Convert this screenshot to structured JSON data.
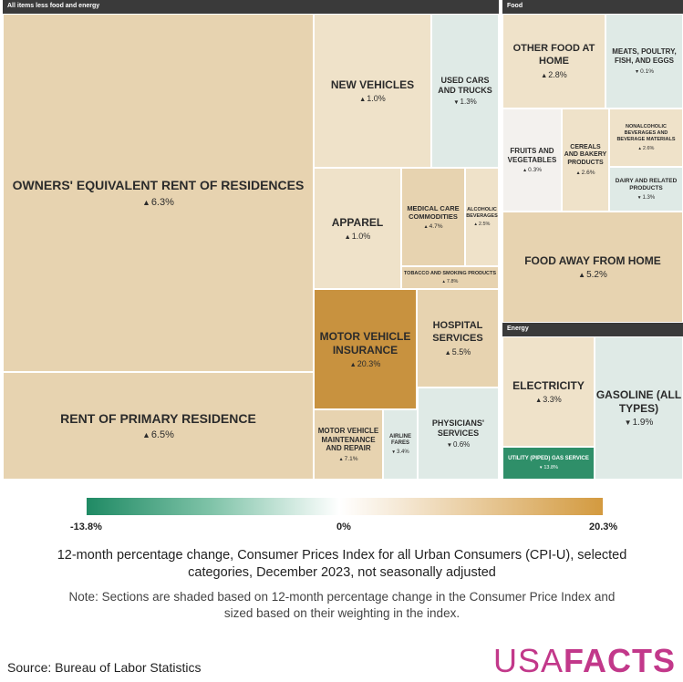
{
  "sections": {
    "all_items": "All items less food and energy",
    "food": "Food",
    "energy": "Energy"
  },
  "colors": {
    "neg_strong": "#2f8f69",
    "neg_light": "#dfeae6",
    "neutral": "#f3f1ee",
    "pos_light": "#efe2c9",
    "pos_mid": "#e7d3b0",
    "pos_strong": "#c8923f"
  },
  "chart_data": {
    "type": "treemap",
    "title": "12-month percentage change, Consumer Prices Index for all Urban Consumers (CPI-U), selected categories, December 2023, not seasonally adjusted",
    "note": "Note: Sections are shaded based on 12-month percentage change in the Consumer Price Index and sized based on their weighting in the index.",
    "color_scale": {
      "min": -13.8,
      "mid": 0,
      "max": 20.3,
      "min_label": "-13.8%",
      "mid_label": "0%",
      "max_label": "20.3%"
    },
    "items": [
      {
        "id": "oer",
        "label": "Owners' equivalent rent of residences",
        "value": 6.3,
        "group": "all_items"
      },
      {
        "id": "rent",
        "label": "Rent of primary residence",
        "value": 6.5,
        "group": "all_items"
      },
      {
        "id": "newveh",
        "label": "New vehicles",
        "value": 1.0,
        "group": "all_items"
      },
      {
        "id": "used",
        "label": "Used cars and trucks",
        "value": -1.3,
        "group": "all_items"
      },
      {
        "id": "apparel",
        "label": "Apparel",
        "value": 1.0,
        "group": "all_items"
      },
      {
        "id": "medcomm",
        "label": "Medical care commodities",
        "value": 4.7,
        "group": "all_items"
      },
      {
        "id": "alcohol",
        "label": "Alcoholic beverages",
        "value": 2.5,
        "group": "all_items"
      },
      {
        "id": "tobacco",
        "label": "Tobacco and smoking products",
        "value": 7.8,
        "group": "all_items"
      },
      {
        "id": "mvins",
        "label": "Motor vehicle insurance",
        "value": 20.3,
        "group": "all_items"
      },
      {
        "id": "hospital",
        "label": "Hospital services",
        "value": 5.5,
        "group": "all_items"
      },
      {
        "id": "mvmaint",
        "label": "Motor vehicle maintenance and repair",
        "value": 7.1,
        "group": "all_items"
      },
      {
        "id": "airline",
        "label": "Airline fares",
        "value": -3.4,
        "group": "all_items"
      },
      {
        "id": "physicians",
        "label": "Physicians' services",
        "value": -0.6,
        "group": "all_items"
      },
      {
        "id": "otherfood",
        "label": "Other food at home",
        "value": 2.8,
        "group": "food"
      },
      {
        "id": "meats",
        "label": "Meats, poultry, fish, and eggs",
        "value": -0.1,
        "group": "food"
      },
      {
        "id": "fruits",
        "label": "Fruits and vegetables",
        "value": 0.3,
        "group": "food"
      },
      {
        "id": "cereals",
        "label": "Cereals and bakery products",
        "value": 2.6,
        "group": "food"
      },
      {
        "id": "nonalc",
        "label": "Nonalcoholic beverages and beverage materials",
        "value": 2.6,
        "group": "food"
      },
      {
        "id": "dairy",
        "label": "Dairy and related products",
        "value": -1.3,
        "group": "food"
      },
      {
        "id": "foodaway",
        "label": "Food away from home",
        "value": 5.2,
        "group": "food"
      },
      {
        "id": "electricity",
        "label": "Electricity",
        "value": 3.3,
        "group": "energy"
      },
      {
        "id": "gasoline",
        "label": "Gasoline (all types)",
        "value": -1.9,
        "group": "energy"
      },
      {
        "id": "utilgas",
        "label": "Utility (piped) gas service",
        "value": -13.8,
        "group": "energy"
      }
    ]
  },
  "footer": {
    "source": "Source: Bureau of Labor Statistics",
    "brand_a": "USA",
    "brand_b": "FACTS"
  }
}
